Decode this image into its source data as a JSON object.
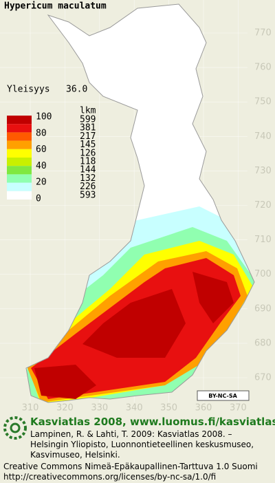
{
  "title": "Hypericum maculatum",
  "frequency": {
    "label": "Yleisyys",
    "value": "36.0"
  },
  "legend": {
    "count_header": "lkm",
    "scale_labels": [
      "100",
      "80",
      "60",
      "40",
      "20",
      "0"
    ],
    "classes": [
      {
        "color": "#c00000",
        "count": "599"
      },
      {
        "color": "#e81010",
        "count": "381"
      },
      {
        "color": "#ff5a00",
        "count": "217"
      },
      {
        "color": "#ffa000",
        "count": "145"
      },
      {
        "color": "#ffff00",
        "count": "126"
      },
      {
        "color": "#c8f000",
        "count": "118"
      },
      {
        "color": "#80e840",
        "count": "144"
      },
      {
        "color": "#90ffb0",
        "count": "132"
      },
      {
        "color": "#c8ffff",
        "count": "226"
      },
      {
        "color": "#ffffff",
        "count": "593"
      }
    ]
  },
  "grid": {
    "northing_ticks": [
      770,
      760,
      750,
      740,
      730,
      720,
      710,
      700,
      690,
      680,
      670
    ],
    "easting_ticks": [
      310,
      320,
      330,
      340,
      350,
      360,
      370
    ]
  },
  "license_badge": "BY-NC-SA",
  "footer": {
    "heading": "Kasviatlas 2008, www.luomus.fi/kasviatlas",
    "citation": [
      "Lampinen, R. & Lahti, T. 2009: Kasviatlas 2008. –",
      "Helsingin Yliopisto, Luonnontieteellinen keskusmuseo,",
      "Kasvimuseo, Helsinki."
    ],
    "license": [
      "Creative Commons Nimeä-Epäkaupallinen-Tarttuva 1.0 Suomi",
      "http://creativecommons.org/licenses/by-nc-sa/1.0/fi"
    ]
  }
}
